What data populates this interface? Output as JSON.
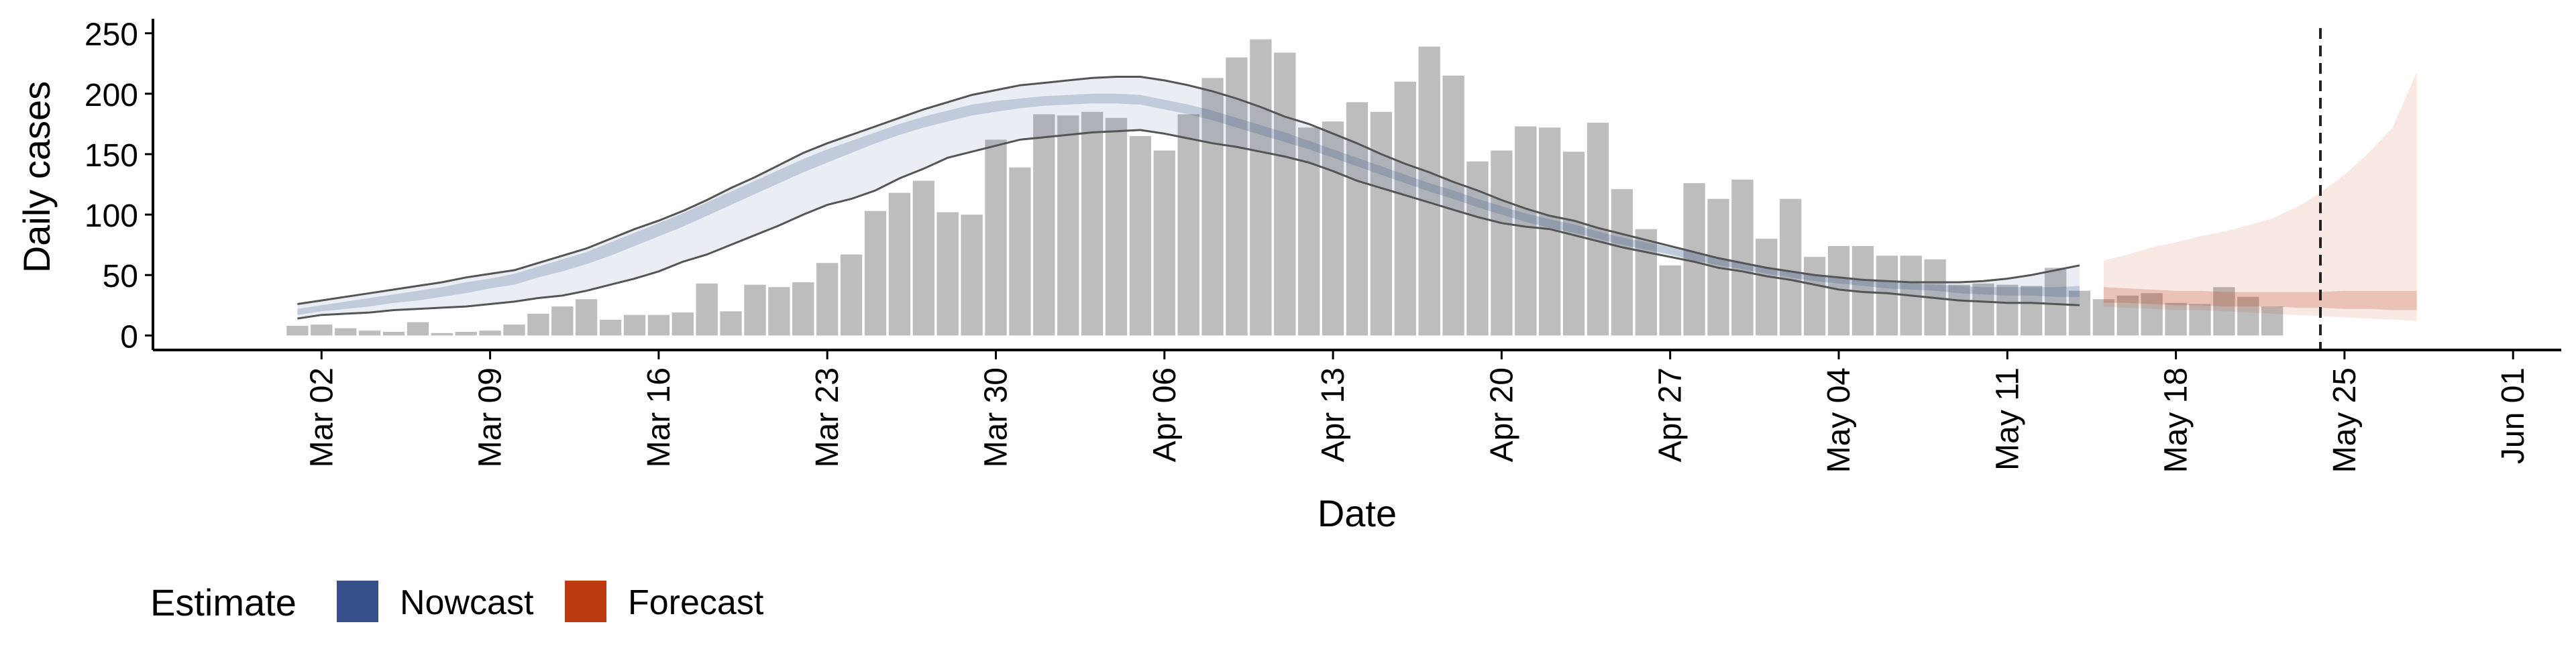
{
  "chart_data": {
    "type": "bar",
    "xlabel": "Date",
    "ylabel": "Daily cases",
    "yticks": [
      0,
      50,
      100,
      150,
      200,
      250
    ],
    "ylim": [
      -12,
      262
    ],
    "xlim_dates": [
      "2020-02-24",
      "2020-06-03"
    ],
    "x_tick_dates": [
      "2020-03-02",
      "2020-03-09",
      "2020-03-16",
      "2020-03-23",
      "2020-03-30",
      "2020-04-06",
      "2020-04-13",
      "2020-04-20",
      "2020-04-27",
      "2020-05-04",
      "2020-05-11",
      "2020-05-18",
      "2020-05-25",
      "2020-06-01"
    ],
    "x_tick_labels": [
      "Mar 02",
      "Mar 09",
      "Mar 16",
      "Mar 23",
      "Mar 30",
      "Apr 06",
      "Apr 13",
      "Apr 20",
      "Apr 27",
      "May 04",
      "May 11",
      "May 18",
      "May 25",
      "Jun 01"
    ],
    "bars": {
      "start_date": "2020-03-01",
      "end_date": "2020-05-22",
      "color": "#bdbdbd",
      "values": [
        8,
        9,
        6,
        4,
        3,
        11,
        2,
        3,
        4,
        9,
        18,
        24,
        30,
        13,
        17,
        17,
        19,
        43,
        20,
        42,
        40,
        44,
        60,
        67,
        103,
        118,
        128,
        102,
        100,
        162,
        139,
        183,
        182,
        185,
        180,
        165,
        153,
        183,
        213,
        230,
        245,
        234,
        172,
        177,
        193,
        185,
        210,
        239,
        215,
        144,
        153,
        173,
        172,
        152,
        176,
        121,
        88,
        58,
        126,
        113,
        129,
        80,
        113,
        65,
        74,
        74,
        66,
        66,
        63,
        42,
        43,
        42,
        41,
        56,
        37,
        30,
        33,
        35,
        27,
        26,
        40,
        32,
        24
      ]
    },
    "series": [
      {
        "name": "Nowcast",
        "color": "#35508a",
        "start_date": "2020-03-01",
        "end_date": "2020-05-14",
        "lower90": [
          14,
          17,
          18,
          19,
          21,
          22,
          23,
          24,
          26,
          28,
          31,
          33,
          37,
          42,
          47,
          53,
          61,
          67,
          75,
          83,
          91,
          100,
          108,
          113,
          120,
          130,
          138,
          147,
          152,
          157,
          162,
          164,
          166,
          168,
          169,
          170,
          167,
          163,
          159,
          156,
          152,
          148,
          143,
          136,
          128,
          122,
          116,
          110,
          104,
          98,
          93,
          90,
          88,
          83,
          78,
          73,
          69,
          65,
          61,
          56,
          53,
          49,
          46,
          42,
          38,
          36,
          35,
          33,
          31,
          29,
          28,
          27,
          27,
          26,
          25
        ],
        "upper90": [
          26,
          29,
          32,
          35,
          38,
          41,
          44,
          48,
          51,
          54,
          60,
          66,
          72,
          80,
          88,
          95,
          103,
          112,
          122,
          131,
          141,
          151,
          159,
          166,
          173,
          180,
          187,
          193,
          199,
          203,
          207,
          209,
          211,
          213,
          214,
          214,
          211,
          207,
          202,
          196,
          189,
          181,
          175,
          167,
          159,
          150,
          142,
          135,
          127,
          120,
          112,
          105,
          99,
          95,
          89,
          84,
          79,
          74,
          69,
          64,
          60,
          56,
          53,
          50,
          48,
          46,
          45,
          44,
          44,
          44,
          45,
          47,
          50,
          54,
          58
        ],
        "lower50": [
          17,
          20,
          22,
          24,
          27,
          29,
          32,
          35,
          39,
          42,
          48,
          53,
          59,
          66,
          74,
          82,
          90,
          99,
          108,
          117,
          126,
          135,
          143,
          151,
          159,
          166,
          172,
          177,
          182,
          185,
          188,
          190,
          191,
          192,
          192,
          191,
          187,
          183,
          178,
          172,
          166,
          160,
          154,
          147,
          140,
          133,
          126,
          119,
          113,
          106,
          100,
          94,
          89,
          85,
          80,
          75,
          71,
          67,
          62,
          58,
          55,
          51,
          48,
          45,
          43,
          41,
          39,
          38,
          37,
          35,
          34,
          33,
          33,
          32,
          32
        ],
        "upper50": [
          22,
          25,
          28,
          31,
          34,
          37,
          40,
          44,
          47,
          51,
          57,
          63,
          69,
          77,
          85,
          93,
          101,
          110,
          119,
          128,
          137,
          146,
          154,
          161,
          168,
          175,
          181,
          186,
          191,
          194,
          196,
          198,
          199,
          200,
          200,
          199,
          195,
          191,
          186,
          180,
          174,
          168,
          161,
          154,
          147,
          140,
          133,
          126,
          120,
          113,
          107,
          101,
          96,
          92,
          86,
          81,
          77,
          73,
          68,
          64,
          60,
          57,
          53,
          50,
          48,
          46,
          44,
          43,
          42,
          41,
          40,
          40,
          40,
          40,
          41
        ]
      },
      {
        "name": "Forecast",
        "color": "#bb3a12",
        "start_date": "2020-05-15",
        "end_date": "2020-05-28",
        "lower90": [
          24,
          23,
          22,
          21,
          21,
          20,
          19,
          18,
          17,
          16,
          15,
          14,
          13,
          12
        ],
        "upper90": [
          62,
          67,
          73,
          77,
          82,
          86,
          91,
          97,
          106,
          118,
          133,
          151,
          172,
          218
        ],
        "lower50": [
          27,
          27,
          26,
          25,
          25,
          24,
          24,
          24,
          23,
          23,
          22,
          22,
          21,
          21
        ],
        "upper50": [
          40,
          39,
          38,
          37,
          37,
          36,
          36,
          36,
          36,
          36,
          37,
          37,
          37,
          37
        ]
      }
    ],
    "reference_line_date": "2020-05-24",
    "legend": {
      "title": "Estimate",
      "placement": "bottom-left",
      "items": [
        {
          "label": "Nowcast",
          "color": "#35508a"
        },
        {
          "label": "Forecast",
          "color": "#bb3a12"
        }
      ]
    }
  }
}
